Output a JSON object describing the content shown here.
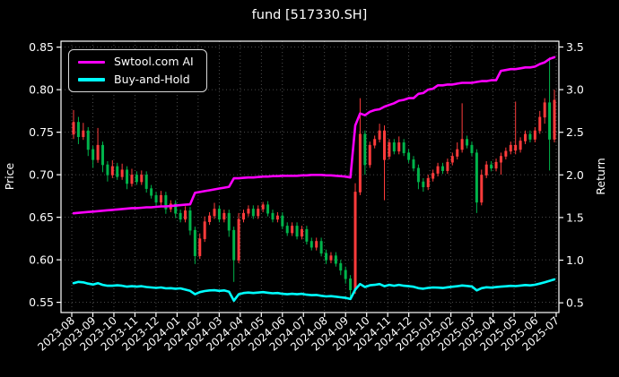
{
  "header": {
    "title": "fund [517330.SH]"
  },
  "chart_data": {
    "type": "candlestick+line",
    "title": "fund [517330.SH]",
    "ylabel_left": "Price",
    "ylabel_right": "Return",
    "grid": "dotted",
    "legend_position": "upper-left",
    "background": "#000000",
    "colors": {
      "up_candle": "#ff3b3b",
      "down_candle": "#00b44b",
      "ai_line": "#ff00ff",
      "bh_line": "#00ffff",
      "text": "#ffffff",
      "grid": "#5f5f5f",
      "spine": "#ffffff"
    },
    "price_ylim": [
      0.538,
      0.857
    ],
    "return_ylim": [
      0.386,
      3.568
    ],
    "price_tick_labels": [
      "0.85",
      "0.80",
      "0.75",
      "0.70",
      "0.65",
      "0.60",
      "0.55"
    ],
    "price_ticks": [
      0.85,
      0.8,
      0.75,
      0.7,
      0.65,
      0.6,
      0.55
    ],
    "return_tick_labels": [
      "3.5",
      "3.0",
      "2.5",
      "2.0",
      "1.5",
      "1.0",
      "0.5"
    ],
    "return_ticks": [
      3.5,
      3.0,
      2.5,
      2.0,
      1.5,
      1.0,
      0.5
    ],
    "x_tick_labels": [
      "2023-08",
      "2023-09",
      "2023-10",
      "2023-11",
      "2023-12",
      "2024-01",
      "2024-02",
      "2024-03",
      "2024-04",
      "2024-05",
      "2024-06",
      "2024-07",
      "2024-08",
      "2024-09",
      "2024-10",
      "2024-11",
      "2024-12",
      "2025-01",
      "2025-02",
      "2025-03",
      "2025-04",
      "2025-05",
      "2025-06",
      "2025-07"
    ],
    "candles": {
      "axis": "price",
      "ohlc": [
        [
          0.748,
          0.776,
          0.742,
          0.762
        ],
        [
          0.762,
          0.768,
          0.736,
          0.745
        ],
        [
          0.745,
          0.761,
          0.741,
          0.752
        ],
        [
          0.752,
          0.756,
          0.722,
          0.73
        ],
        [
          0.73,
          0.734,
          0.708,
          0.718
        ],
        [
          0.718,
          0.755,
          0.714,
          0.735
        ],
        [
          0.735,
          0.739,
          0.703,
          0.712
        ],
        [
          0.712,
          0.716,
          0.692,
          0.7
        ],
        [
          0.7,
          0.717,
          0.696,
          0.71
        ],
        [
          0.71,
          0.714,
          0.694,
          0.698
        ],
        [
          0.698,
          0.713,
          0.694,
          0.706
        ],
        [
          0.706,
          0.71,
          0.683,
          0.69
        ],
        [
          0.69,
          0.707,
          0.686,
          0.7
        ],
        [
          0.7,
          0.704,
          0.688,
          0.692
        ],
        [
          0.692,
          0.705,
          0.688,
          0.7
        ],
        [
          0.7,
          0.704,
          0.679,
          0.684
        ],
        [
          0.684,
          0.688,
          0.672,
          0.676
        ],
        [
          0.676,
          0.68,
          0.661,
          0.668
        ],
        [
          0.668,
          0.681,
          0.664,
          0.676
        ],
        [
          0.676,
          0.68,
          0.654,
          0.66
        ],
        [
          0.66,
          0.67,
          0.656,
          0.666
        ],
        [
          0.666,
          0.67,
          0.649,
          0.655
        ],
        [
          0.655,
          0.659,
          0.644,
          0.648
        ],
        [
          0.648,
          0.663,
          0.644,
          0.658
        ],
        [
          0.658,
          0.662,
          0.629,
          0.635
        ],
        [
          0.635,
          0.639,
          0.595,
          0.605
        ],
        [
          0.605,
          0.631,
          0.601,
          0.625
        ],
        [
          0.625,
          0.651,
          0.621,
          0.645
        ],
        [
          0.645,
          0.656,
          0.641,
          0.652
        ],
        [
          0.652,
          0.667,
          0.648,
          0.66
        ],
        [
          0.66,
          0.664,
          0.644,
          0.648
        ],
        [
          0.648,
          0.659,
          0.644,
          0.655
        ],
        [
          0.655,
          0.659,
          0.627,
          0.635
        ],
        [
          0.635,
          0.639,
          0.574,
          0.6
        ],
        [
          0.6,
          0.655,
          0.596,
          0.648
        ],
        [
          0.648,
          0.659,
          0.644,
          0.655
        ],
        [
          0.655,
          0.664,
          0.651,
          0.66
        ],
        [
          0.66,
          0.664,
          0.648,
          0.652
        ],
        [
          0.652,
          0.664,
          0.648,
          0.66
        ],
        [
          0.66,
          0.668,
          0.656,
          0.665
        ],
        [
          0.665,
          0.669,
          0.651,
          0.655
        ],
        [
          0.655,
          0.659,
          0.644,
          0.648
        ],
        [
          0.648,
          0.656,
          0.644,
          0.652
        ],
        [
          0.652,
          0.656,
          0.636,
          0.64
        ],
        [
          0.64,
          0.644,
          0.628,
          0.632
        ],
        [
          0.632,
          0.644,
          0.628,
          0.64
        ],
        [
          0.64,
          0.644,
          0.624,
          0.628
        ],
        [
          0.628,
          0.64,
          0.624,
          0.636
        ],
        [
          0.636,
          0.64,
          0.618,
          0.622
        ],
        [
          0.622,
          0.626,
          0.611,
          0.615
        ],
        [
          0.615,
          0.626,
          0.611,
          0.622
        ],
        [
          0.622,
          0.626,
          0.604,
          0.608
        ],
        [
          0.608,
          0.612,
          0.595,
          0.6
        ],
        [
          0.6,
          0.609,
          0.596,
          0.605
        ],
        [
          0.605,
          0.609,
          0.592,
          0.596
        ],
        [
          0.596,
          0.6,
          0.582,
          0.588
        ],
        [
          0.588,
          0.592,
          0.572,
          0.578
        ],
        [
          0.578,
          0.582,
          0.553,
          0.565
        ],
        [
          0.565,
          0.69,
          0.56,
          0.68
        ],
        [
          0.68,
          0.79,
          0.676,
          0.748
        ],
        [
          0.748,
          0.752,
          0.7,
          0.712
        ],
        [
          0.712,
          0.739,
          0.708,
          0.735
        ],
        [
          0.735,
          0.746,
          0.731,
          0.742
        ],
        [
          0.742,
          0.76,
          0.738,
          0.752
        ],
        [
          0.718,
          0.758,
          0.67,
          0.752
        ],
        [
          0.722,
          0.742,
          0.718,
          0.738
        ],
        [
          0.738,
          0.742,
          0.724,
          0.728
        ],
        [
          0.728,
          0.745,
          0.724,
          0.738
        ],
        [
          0.738,
          0.742,
          0.722,
          0.726
        ],
        [
          0.726,
          0.73,
          0.714,
          0.718
        ],
        [
          0.718,
          0.722,
          0.704,
          0.708
        ],
        [
          0.708,
          0.712,
          0.683,
          0.692
        ],
        [
          0.692,
          0.696,
          0.68,
          0.686
        ],
        [
          0.686,
          0.7,
          0.682,
          0.696
        ],
        [
          0.696,
          0.706,
          0.692,
          0.702
        ],
        [
          0.702,
          0.714,
          0.698,
          0.71
        ],
        [
          0.71,
          0.714,
          0.701,
          0.705
        ],
        [
          0.705,
          0.719,
          0.701,
          0.715
        ],
        [
          0.715,
          0.726,
          0.711,
          0.722
        ],
        [
          0.722,
          0.738,
          0.718,
          0.73
        ],
        [
          0.73,
          0.784,
          0.726,
          0.742
        ],
        [
          0.742,
          0.746,
          0.731,
          0.735
        ],
        [
          0.735,
          0.739,
          0.722,
          0.726
        ],
        [
          0.726,
          0.73,
          0.655,
          0.668
        ],
        [
          0.668,
          0.706,
          0.664,
          0.7
        ],
        [
          0.7,
          0.716,
          0.696,
          0.712
        ],
        [
          0.712,
          0.716,
          0.704,
          0.708
        ],
        [
          0.708,
          0.719,
          0.704,
          0.715
        ],
        [
          0.715,
          0.726,
          0.7,
          0.722
        ],
        [
          0.722,
          0.732,
          0.718,
          0.728
        ],
        [
          0.728,
          0.739,
          0.724,
          0.735
        ],
        [
          0.729,
          0.786,
          0.724,
          0.735
        ],
        [
          0.73,
          0.744,
          0.726,
          0.74
        ],
        [
          0.74,
          0.752,
          0.736,
          0.748
        ],
        [
          0.748,
          0.752,
          0.738,
          0.742
        ],
        [
          0.742,
          0.756,
          0.738,
          0.752
        ],
        [
          0.752,
          0.775,
          0.748,
          0.768
        ],
        [
          0.768,
          0.79,
          0.76,
          0.785
        ],
        [
          0.785,
          0.838,
          0.705,
          0.742
        ],
        [
          0.742,
          0.8,
          0.738,
          0.788
        ]
      ]
    },
    "series": [
      {
        "name": "Swtool.com AI",
        "color": "#ff00ff",
        "axis": "return",
        "values": [
          1.55,
          1.555,
          1.56,
          1.565,
          1.57,
          1.575,
          1.58,
          1.585,
          1.59,
          1.595,
          1.6,
          1.605,
          1.61,
          1.61,
          1.615,
          1.62,
          1.62,
          1.625,
          1.63,
          1.63,
          1.635,
          1.64,
          1.645,
          1.65,
          1.655,
          1.79,
          1.8,
          1.81,
          1.82,
          1.83,
          1.84,
          1.85,
          1.86,
          1.96,
          1.96,
          1.965,
          1.97,
          1.97,
          1.975,
          1.98,
          1.98,
          1.985,
          1.985,
          1.99,
          1.99,
          1.99,
          1.99,
          1.995,
          1.995,
          2.0,
          2.0,
          2.0,
          1.995,
          1.995,
          1.99,
          1.985,
          1.98,
          1.97,
          2.58,
          2.72,
          2.7,
          2.74,
          2.76,
          2.77,
          2.8,
          2.82,
          2.84,
          2.87,
          2.88,
          2.9,
          2.9,
          2.95,
          2.96,
          3.0,
          3.01,
          3.05,
          3.05,
          3.06,
          3.06,
          3.07,
          3.08,
          3.08,
          3.08,
          3.09,
          3.1,
          3.1,
          3.11,
          3.11,
          3.22,
          3.23,
          3.24,
          3.24,
          3.25,
          3.26,
          3.26,
          3.27,
          3.3,
          3.32,
          3.36,
          3.38
        ]
      },
      {
        "name": "Buy-and-Hold",
        "color": "#00ffff",
        "axis": "return",
        "values": [
          0.73,
          0.745,
          0.74,
          0.725,
          0.715,
          0.73,
          0.71,
          0.7,
          0.7,
          0.705,
          0.7,
          0.69,
          0.695,
          0.69,
          0.695,
          0.685,
          0.68,
          0.675,
          0.68,
          0.67,
          0.672,
          0.665,
          0.67,
          0.655,
          0.64,
          0.6,
          0.625,
          0.638,
          0.645,
          0.648,
          0.64,
          0.645,
          0.63,
          0.525,
          0.6,
          0.615,
          0.62,
          0.615,
          0.62,
          0.625,
          0.618,
          0.612,
          0.615,
          0.605,
          0.6,
          0.605,
          0.6,
          0.605,
          0.595,
          0.59,
          0.592,
          0.582,
          0.575,
          0.578,
          0.572,
          0.565,
          0.558,
          0.545,
          0.655,
          0.72,
          0.685,
          0.705,
          0.71,
          0.72,
          0.695,
          0.71,
          0.7,
          0.71,
          0.7,
          0.695,
          0.688,
          0.672,
          0.665,
          0.675,
          0.68,
          0.678,
          0.674,
          0.682,
          0.688,
          0.695,
          0.703,
          0.698,
          0.692,
          0.645,
          0.672,
          0.682,
          0.678,
          0.684,
          0.69,
          0.694,
          0.699,
          0.696,
          0.702,
          0.708,
          0.704,
          0.712,
          0.725,
          0.74,
          0.758,
          0.775
        ]
      }
    ]
  }
}
